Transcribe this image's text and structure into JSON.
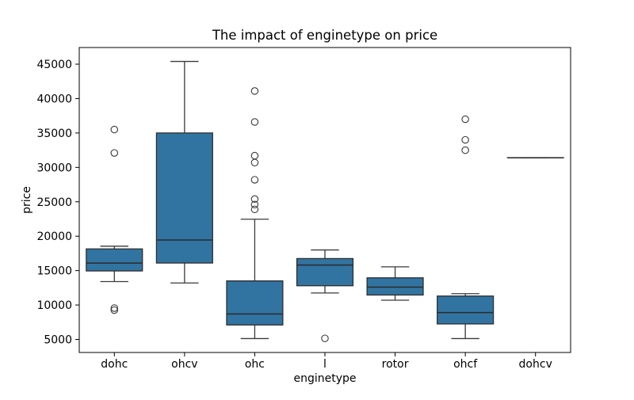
{
  "figure": {
    "background": "#ffffff"
  },
  "chart_data": {
    "type": "boxplot",
    "title": "The impact of enginetype on price",
    "xlabel": "enginetype",
    "ylabel": "price",
    "categories": [
      "dohc",
      "ohcv",
      "ohc",
      "l",
      "rotor",
      "ohcf",
      "dohcv"
    ],
    "yticks": [
      5000,
      10000,
      15000,
      20000,
      25000,
      30000,
      35000,
      40000,
      45000
    ],
    "ylim": [
      3100,
      47420
    ],
    "grid": false,
    "legend": null,
    "box_width_frac": 0.8,
    "colors": {
      "box_fill": "#3274a1",
      "box_edge": "#2e2e2e",
      "line": "#3a3a3a",
      "median": "#2b2b2b",
      "spine": "#000000",
      "flier": "#3a3a3a"
    },
    "boxes": [
      {
        "category": "dohc",
        "whislo": 13400,
        "q1": 14950,
        "med": 16100,
        "q3": 18150,
        "whishi": 18550,
        "outliers": [
          35500,
          32100,
          9550,
          9250
        ]
      },
      {
        "category": "ohcv",
        "whislo": 13200,
        "q1": 16100,
        "med": 19450,
        "q3": 35000,
        "whishi": 45400,
        "outliers": []
      },
      {
        "category": "ohc",
        "whislo": 5120,
        "q1": 7100,
        "med": 8700,
        "q3": 13500,
        "whishi": 22470,
        "outliers": [
          41100,
          36600,
          31700,
          30700,
          28200,
          25400,
          24600,
          23900
        ]
      },
      {
        "category": "l",
        "whislo": 11750,
        "q1": 12800,
        "med": 15800,
        "q3": 16750,
        "whishi": 18000,
        "outliers": [
          5150
        ]
      },
      {
        "category": "rotor",
        "whislo": 10700,
        "q1": 11450,
        "med": 12600,
        "q3": 13950,
        "whishi": 15550,
        "outliers": []
      },
      {
        "category": "ohcf",
        "whislo": 5120,
        "q1": 7250,
        "med": 8900,
        "q3": 11300,
        "whishi": 11650,
        "outliers": [
          37000,
          34000,
          32500
        ]
      },
      {
        "category": "dohcv",
        "whislo": 31400,
        "q1": 31400,
        "med": 31400,
        "q3": 31400,
        "whishi": 31400,
        "outliers": []
      }
    ]
  }
}
